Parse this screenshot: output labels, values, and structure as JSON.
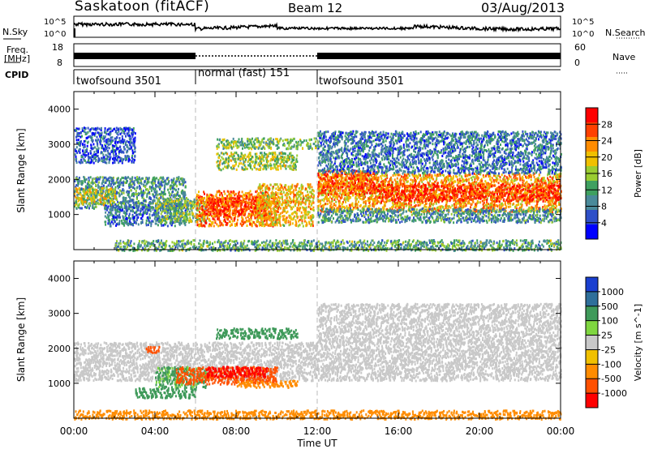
{
  "header": {
    "title": "Saskatoon (fitACF)",
    "beam": "Beam 12",
    "date": "03/Aug/2013"
  },
  "noise_panel": {
    "left_label": "N.Sky",
    "right_label": "N.Search",
    "left_ticks": [
      "10^5",
      "10^0"
    ],
    "right_ticks": [
      "10^5",
      "10^0"
    ]
  },
  "freq_panel": {
    "left_label_1": "Freq.",
    "left_label_2": "[MHz]",
    "right_label": "Nave",
    "left_ticks": [
      "18",
      "8"
    ],
    "right_ticks": [
      "60",
      "0"
    ]
  },
  "cpid": {
    "label": "CPID",
    "segments": [
      {
        "name": "twofsound 3501",
        "start": 0,
        "end": 6
      },
      {
        "name": "normal (fast) 151",
        "start": 6,
        "end": 12
      },
      {
        "name": "twofsound 3501",
        "start": 12,
        "end": 24
      }
    ]
  },
  "colors": {
    "power": [
      "#0000ff",
      "#2f50c8",
      "#4a8a9a",
      "#3fa060",
      "#9acd32",
      "#f0c000",
      "#ff8c00",
      "#ff4000",
      "#ff0000"
    ],
    "velocity": [
      "#1a3fd0",
      "#2f6f9a",
      "#3f9a5a",
      "#7fd640",
      "#c8c8c8",
      "#f0c000",
      "#ff8c00",
      "#ff5000",
      "#ff0000"
    ]
  },
  "chart_data": [
    {
      "type": "heatmap",
      "ylabel": "Slant Range [km]",
      "ylim": [
        0,
        4500
      ],
      "yticks": [
        "1000",
        "2000",
        "3000",
        "4000"
      ],
      "xlim": [
        0,
        24
      ],
      "colorbar": {
        "label": "Power [dB]",
        "ticks": [
          "28",
          "24",
          "20",
          "16",
          "12",
          "8",
          "4"
        ],
        "range": [
          0,
          32
        ]
      },
      "bands": [
        {
          "start": 0,
          "end": 5.5,
          "r0": 1200,
          "r1": 2100,
          "value": 10
        },
        {
          "start": 1.5,
          "end": 5.5,
          "r0": 700,
          "r1": 1300,
          "value": 8
        },
        {
          "start": 0,
          "end": 2,
          "r0": 1300,
          "r1": 1800,
          "value": 18
        },
        {
          "start": 4,
          "end": 6.5,
          "r0": 800,
          "r1": 1500,
          "value": 14
        },
        {
          "start": 6,
          "end": 10,
          "r0": 700,
          "r1": 1700,
          "value": 24
        },
        {
          "start": 6.5,
          "end": 9.5,
          "r0": 1000,
          "r1": 1500,
          "value": 28
        },
        {
          "start": 7,
          "end": 11,
          "r0": 2300,
          "r1": 2800,
          "value": 16
        },
        {
          "start": 9,
          "end": 11.8,
          "r0": 700,
          "r1": 1900,
          "value": 20
        },
        {
          "start": 12,
          "end": 24,
          "r0": 1100,
          "r1": 2200,
          "value": 22
        },
        {
          "start": 12,
          "end": 15,
          "r0": 1600,
          "r1": 2300,
          "value": 26
        },
        {
          "start": 15,
          "end": 24,
          "r0": 1400,
          "r1": 1900,
          "value": 28
        },
        {
          "start": 12,
          "end": 24,
          "r0": 800,
          "r1": 1200,
          "value": 10
        },
        {
          "start": 12,
          "end": 24,
          "r0": 0,
          "r1": 300,
          "value": 12
        },
        {
          "start": 2,
          "end": 12,
          "r0": 0,
          "r1": 300,
          "value": 12
        },
        {
          "start": 7,
          "end": 12,
          "r0": 2900,
          "r1": 3200,
          "value": 14
        },
        {
          "start": 0,
          "end": 3,
          "r0": 2500,
          "r1": 3500,
          "value": 6
        },
        {
          "start": 12,
          "end": 24,
          "r0": 2200,
          "r1": 3400,
          "value": 8
        }
      ]
    },
    {
      "type": "heatmap",
      "ylabel": "Slant Range [km]",
      "ylim": [
        0,
        4500
      ],
      "yticks": [
        "1000",
        "2000",
        "3000",
        "4000"
      ],
      "xlim": [
        0,
        24
      ],
      "xlabel": "Time UT",
      "xticks": [
        "00:00",
        "04:00",
        "08:00",
        "12:00",
        "16:00",
        "20:00",
        "00:00"
      ],
      "colorbar": {
        "label": "Velocity [m s^-1]",
        "ticks": [
          "1000",
          "500",
          "100",
          "25",
          "-25",
          "-100",
          "-500",
          "-1000"
        ]
      },
      "bands": [
        {
          "start": 0,
          "end": 24,
          "r0": 1100,
          "r1": 2200,
          "value": 0
        },
        {
          "start": 4,
          "end": 6.5,
          "r0": 900,
          "r1": 1500,
          "value": 100
        },
        {
          "start": 5,
          "end": 10,
          "r0": 1000,
          "r1": 1500,
          "value": -500
        },
        {
          "start": 6.5,
          "end": 9.5,
          "r0": 1200,
          "r1": 1500,
          "value": -1000
        },
        {
          "start": 8,
          "end": 11,
          "r0": 900,
          "r1": 1100,
          "value": -200
        },
        {
          "start": 3,
          "end": 6,
          "r0": 600,
          "r1": 900,
          "value": 200
        },
        {
          "start": 3.5,
          "end": 4.2,
          "r0": 1900,
          "r1": 2100,
          "value": -500
        },
        {
          "start": 7,
          "end": 11,
          "r0": 2300,
          "r1": 2600,
          "value": 200
        },
        {
          "start": 0,
          "end": 24,
          "r0": 0,
          "r1": 250,
          "value": -200
        },
        {
          "start": 12,
          "end": 24,
          "r0": 2200,
          "r1": 3300,
          "value": 0
        }
      ]
    }
  ]
}
